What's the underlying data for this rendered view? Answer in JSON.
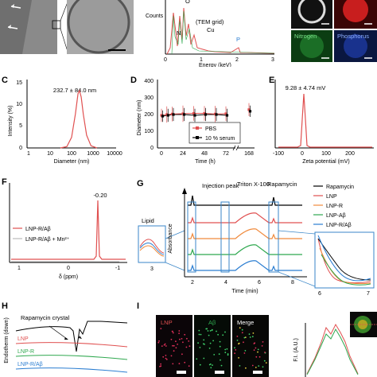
{
  "panel_labels": [
    "C",
    "D",
    "E",
    "F",
    "G",
    "H",
    "I"
  ],
  "chart_data": [
    {
      "id": "A_eds",
      "type": "line",
      "ylabel": "Counts",
      "xlabel": "Energy (keV)",
      "xlim": [
        0,
        3
      ],
      "xticks": [
        "0",
        "1",
        "2",
        "3"
      ],
      "peak_labels": [
        {
          "text": "O",
          "x": 0.52
        },
        {
          "text": "N",
          "x": 0.39
        },
        {
          "text": "(TEM grid)",
          "x": 0.95
        },
        {
          "text": "Cu",
          "x": 0.93
        },
        {
          "text": "P",
          "x": 2.01
        }
      ],
      "colors": {
        "curve": "#e05050",
        "N": "#2fa84f",
        "P": "#2a7dd1"
      }
    },
    {
      "id": "A_maps",
      "type": "image",
      "tiles": [
        "Nitrogen",
        "Phosphorus"
      ],
      "tile_colors": [
        "#0b3d12",
        "#0a1740"
      ]
    },
    {
      "id": "C",
      "type": "line",
      "annotation": "232.7 ± 84.0 nm",
      "xlabel": "Diameter (nm)",
      "ylabel": "Intensity (%)",
      "xscale": "log",
      "xticks": [
        "1",
        "10",
        "100",
        "1000",
        "10000"
      ],
      "yticks": [
        "0",
        "5",
        "10",
        "15"
      ],
      "ylim": [
        0,
        15
      ],
      "series": [
        {
          "x": [
            30,
            60,
            100,
            150,
            200,
            233,
            280,
            350,
            500,
            800,
            1500
          ],
          "y": [
            0,
            0.3,
            2.5,
            8,
            12.8,
            13.5,
            12,
            8,
            3,
            0.5,
            0
          ]
        }
      ],
      "color": "#e05050"
    },
    {
      "id": "D",
      "type": "line",
      "xlabel": "Time (h)",
      "ylabel": "Diameter (nm)",
      "xticks": [
        "0",
        "24",
        "48",
        "72",
        "168"
      ],
      "yticks": [
        "0",
        "100",
        "200",
        "300",
        "400"
      ],
      "ylim": [
        0,
        400
      ],
      "series": [
        {
          "name": "PBS",
          "color": "#e05050",
          "x": [
            0,
            6,
            12,
            24,
            36,
            48,
            60,
            72,
            168
          ],
          "y": [
            200,
            205,
            208,
            210,
            212,
            212,
            208,
            210,
            235
          ],
          "err": [
            40,
            50,
            45,
            50,
            45,
            45,
            50,
            45,
            40
          ]
        },
        {
          "name": "10 % serum",
          "color": "#000000",
          "x": [
            0,
            6,
            12,
            24,
            36,
            48,
            60,
            72,
            168
          ],
          "y": [
            195,
            200,
            205,
            205,
            200,
            205,
            205,
            200,
            225
          ],
          "err": [
            35,
            40,
            40,
            40,
            40,
            40,
            40,
            40,
            35
          ]
        }
      ]
    },
    {
      "id": "E",
      "type": "line",
      "annotation": "9.28 ± 4.74 mV",
      "xlabel": "Zeta potential (mV)",
      "xticks": [
        "-100",
        "0",
        "100",
        "200"
      ],
      "color": "#e05050"
    },
    {
      "id": "F",
      "type": "line",
      "annotation": "-0.20",
      "xlabel": "δ (ppm)",
      "xticks": [
        "1",
        "0",
        "-1"
      ],
      "series": [
        {
          "name": "LNP-R/Aβ",
          "color": "#e05050"
        },
        {
          "name": "LNP-R/Aβ + Mn²⁺",
          "color": "#bbbbbb"
        }
      ]
    },
    {
      "id": "G",
      "type": "line",
      "xlabel": "Time (min)",
      "ylabel": "Absorbance",
      "xticks": [
        "2",
        "4",
        "6",
        "8"
      ],
      "annotations": [
        "Injection peak",
        "Triton X-100",
        "Rapamycin",
        "Lipid"
      ],
      "inset_labels": [
        "3",
        "6",
        "7"
      ],
      "series": [
        {
          "name": "Rapamycin",
          "color": "#000000"
        },
        {
          "name": "LNP",
          "color": "#e05050"
        },
        {
          "name": "LNP-R",
          "color": "#f08a3c"
        },
        {
          "name": "LNP-Aβ",
          "color": "#2fa84f"
        },
        {
          "name": "LNP-R/Aβ",
          "color": "#2a7dd1"
        }
      ]
    },
    {
      "id": "H",
      "type": "line",
      "ylabel": "Endotherm (down)",
      "annotation": "Rapamycin crystal",
      "series": [
        {
          "name": "LNP",
          "color": "#e05050"
        },
        {
          "name": "LNP-R",
          "color": "#2fa84f"
        },
        {
          "name": "LNP-R/Aβ",
          "color": "#2a7dd1"
        }
      ]
    },
    {
      "id": "I",
      "type": "image",
      "tiles": [
        "LNP",
        "Aβ",
        "Merge"
      ],
      "tile_label_colors": [
        "#e05050",
        "#2fa84f",
        "#ffffff"
      ],
      "profile_ylabel": "F.I. (A.U.)",
      "profile_colors": [
        "#e05050",
        "#2fa84f"
      ]
    }
  ]
}
